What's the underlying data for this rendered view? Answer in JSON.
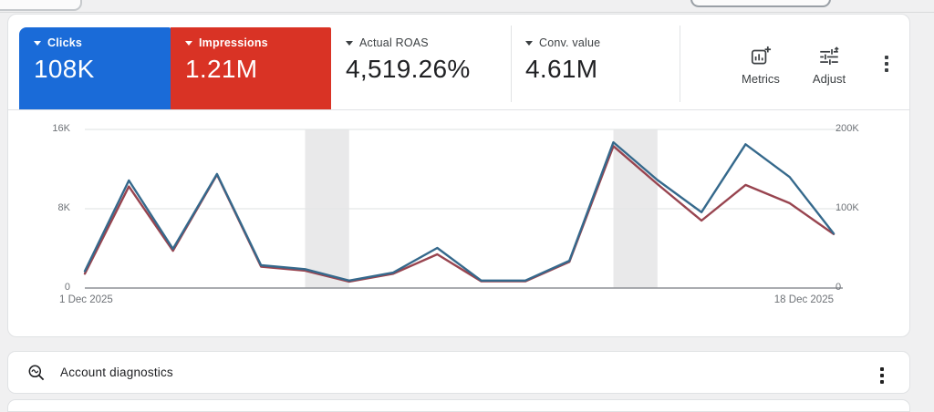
{
  "metric_cards": [
    {
      "label": "Clicks",
      "value": "108K",
      "bg": "#1a6bd8",
      "fg": "#ffffff"
    },
    {
      "label": "Impressions",
      "value": "1.21M",
      "bg": "#d93325",
      "fg": "#ffffff"
    },
    {
      "label": "Actual ROAS",
      "value": "4,519.26%"
    },
    {
      "label": "Conv. value",
      "value": "4.61M"
    }
  ],
  "toolbar": {
    "metrics_label": "Metrics",
    "adjust_label": "Adjust"
  },
  "chart_data": {
    "type": "line",
    "x_unit": "day of December 2025",
    "x": [
      1,
      2,
      3,
      4,
      5,
      6,
      7,
      8,
      9,
      10,
      11,
      12,
      13,
      14,
      15,
      16,
      17,
      18
    ],
    "x_tick_labels": [
      "1 Dec 2025",
      "18 Dec 2025"
    ],
    "series": [
      {
        "name": "Impressions",
        "axis": "right",
        "color": "#98444f",
        "values": [
          18000,
          128000,
          47000,
          143000,
          27000,
          22000,
          8000,
          18000,
          42500,
          8500,
          8500,
          33000,
          179000,
          131000,
          85000,
          130000,
          107000,
          68000
        ]
      },
      {
        "name": "Clicks",
        "axis": "left",
        "color": "#35698c",
        "values": [
          1700,
          10850,
          3950,
          11500,
          2300,
          1900,
          750,
          1550,
          4050,
          750,
          750,
          2750,
          14700,
          10900,
          7650,
          14500,
          11200,
          5500
        ]
      }
    ],
    "left_axis": {
      "ticks": [
        "16K",
        "8K",
        "0"
      ],
      "max": 16000
    },
    "right_axis": {
      "ticks": [
        "200K",
        "100K",
        "0"
      ],
      "max": 200000
    },
    "weekend_bands": [
      [
        6,
        7
      ],
      [
        13,
        14
      ]
    ],
    "grid": true,
    "legend": "none (colors match metric cards)"
  },
  "bottom_bar": {
    "title": "Account diagnostics"
  }
}
